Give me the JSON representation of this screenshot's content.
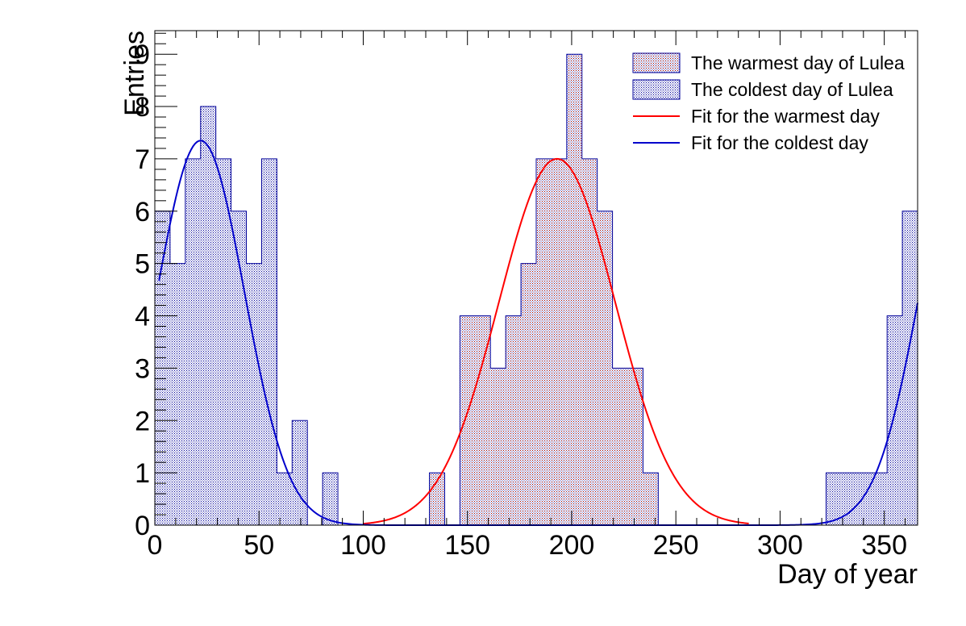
{
  "chart_data": {
    "type": "bar",
    "xlabel": "Day of year",
    "ylabel": "Entries",
    "xlim": [
      0,
      366
    ],
    "ylim": [
      0,
      9.45
    ],
    "x_ticks": [
      0,
      50,
      100,
      150,
      200,
      250,
      300,
      350
    ],
    "y_ticks": [
      0,
      1,
      2,
      3,
      4,
      5,
      6,
      7,
      8,
      9
    ],
    "x_tick_labels": [
      "0",
      "50",
      "100",
      "150",
      "200",
      "250",
      "300",
      "350"
    ],
    "y_tick_labels": [
      "0",
      "1",
      "2",
      "3",
      "4",
      "5",
      "6",
      "7",
      "8",
      "9"
    ],
    "bin_width": 7.32,
    "series": [
      {
        "name": "The coldest day of Lulea",
        "color": "#000099",
        "values": [
          6,
          5,
          7,
          8,
          7,
          6,
          5,
          7,
          1,
          2,
          0,
          1,
          0,
          0,
          0,
          0,
          0,
          0,
          0,
          0,
          0,
          0,
          0,
          0,
          0,
          0,
          0,
          0,
          0,
          0,
          0,
          0,
          0,
          0,
          0,
          0,
          0,
          0,
          0,
          0,
          0,
          0,
          0,
          0,
          1,
          1,
          1,
          1,
          4,
          6
        ]
      },
      {
        "name": "The warmest day of Lulea",
        "color": "#990000",
        "values": [
          0,
          0,
          0,
          0,
          0,
          0,
          0,
          0,
          0,
          0,
          0,
          0,
          0,
          0,
          0,
          0,
          0,
          0,
          1,
          0,
          4,
          4,
          3,
          4,
          5,
          7,
          7,
          9,
          7,
          6,
          3,
          3,
          1,
          0,
          0,
          0,
          0,
          0,
          0,
          0,
          0,
          0,
          0,
          0,
          0,
          0,
          0,
          0,
          0,
          0
        ]
      }
    ],
    "fits": [
      {
        "name": "Fit for the warmest day",
        "color": "#ff0000",
        "type": "gaussian",
        "amplitude": 7.0,
        "mean": 193,
        "sigma": 28,
        "x_range": [
          100,
          285
        ]
      },
      {
        "name": "Fit for the coldest day",
        "color": "#0000cc",
        "type": "gaussian-periodic",
        "amplitude": 7.35,
        "mean": 22,
        "sigma": 21,
        "x_range": [
          2,
          366
        ]
      }
    ],
    "legend": {
      "position": "top-right",
      "entries": [
        {
          "label": "The warmest day of Lulea",
          "kind": "hist",
          "color": "#990000"
        },
        {
          "label": "The coldest day of Lulea",
          "kind": "hist",
          "color": "#000099"
        },
        {
          "label": "Fit for the warmest day",
          "kind": "line",
          "color": "#ff0000"
        },
        {
          "label": "Fit for the coldest day",
          "kind": "line",
          "color": "#0000cc"
        }
      ]
    }
  }
}
